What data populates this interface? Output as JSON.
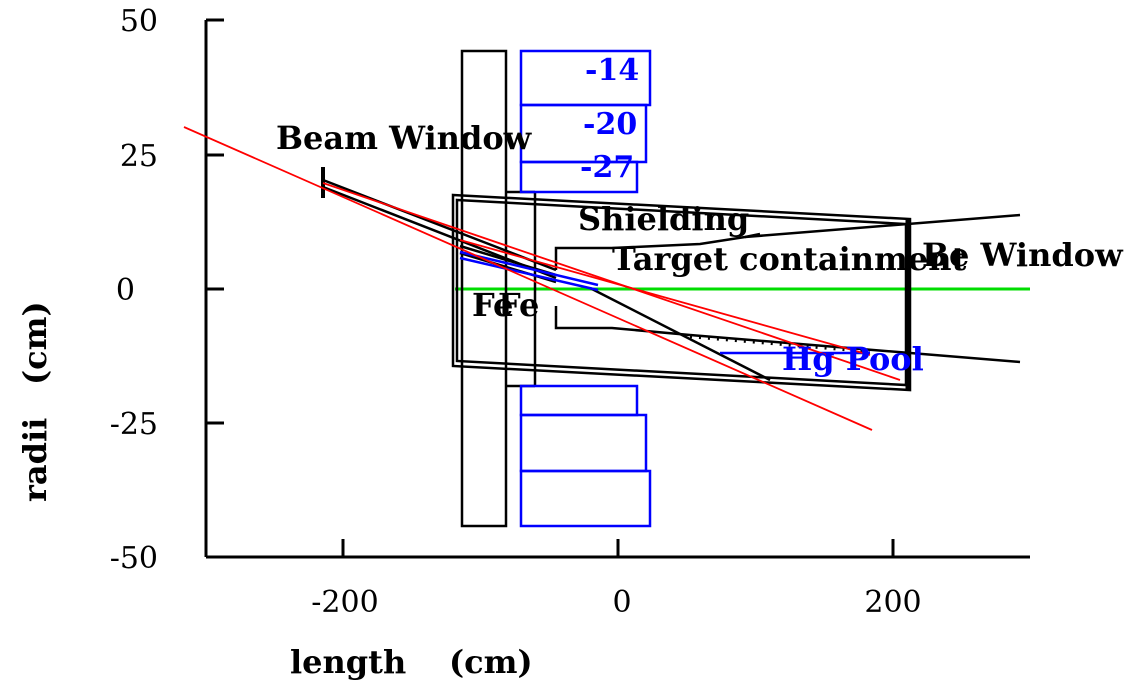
{
  "axes": {
    "xlabel": "length",
    "xunit": "(cm)",
    "ylabel": "radii",
    "yunit": "(cm)",
    "xlim": [
      -300,
      300
    ],
    "ylim": [
      -50,
      50
    ],
    "xticks": [
      -200,
      0,
      200
    ],
    "yticks": [
      50,
      25,
      0,
      -25,
      -50
    ]
  },
  "labels": {
    "beam_window": "Beam Window",
    "shielding": "Shielding",
    "target_containment": "Target containment",
    "be_window": "Be Window",
    "fe1": "Fe",
    "fe2": "Fe",
    "hg_pool": "Hg Pool",
    "coil_1": "-14",
    "coil_2": "-20",
    "coil_3": "-27"
  },
  "colors": {
    "axis": "#000000",
    "structure": "#000000",
    "coils": "#0000ff",
    "beam_axis": "#00dd00",
    "rays": "#ff0000"
  }
}
